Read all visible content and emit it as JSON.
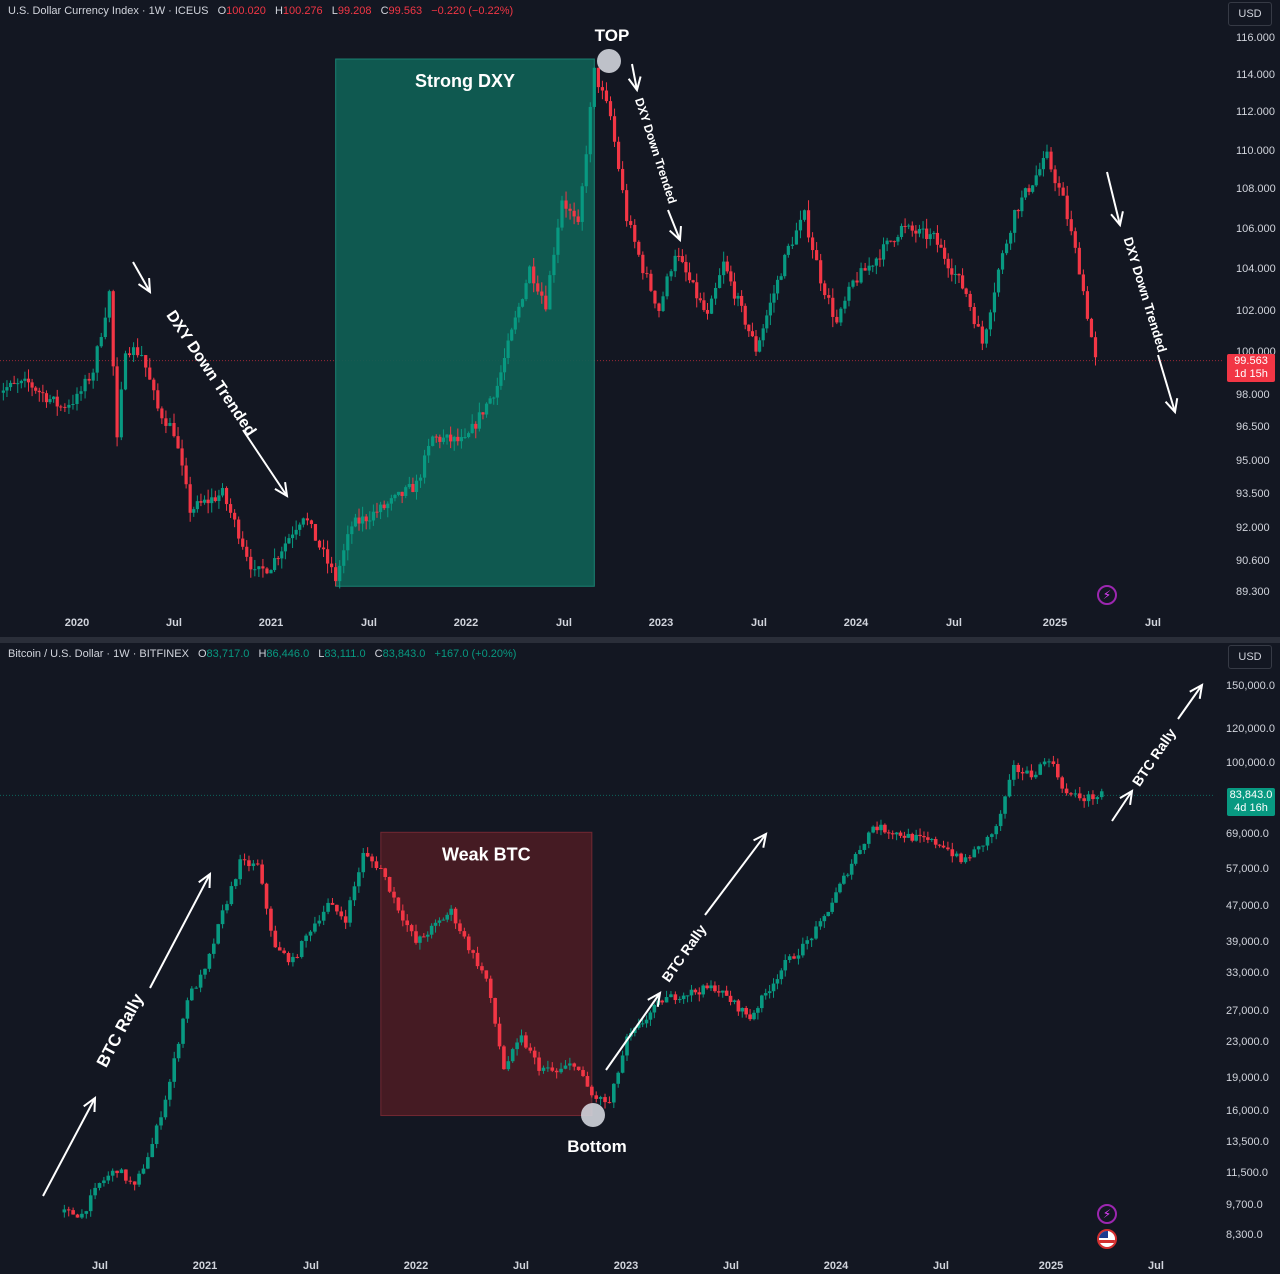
{
  "chart_data": [
    {
      "type": "candlestick",
      "symbol_line": "U.S. Dollar Currency Index · 1W · ICEUS",
      "ohlc": {
        "o_label": "O",
        "o": "100.020",
        "h_label": "H",
        "h": "100.276",
        "l_label": "L",
        "l": "99.208",
        "c_label": "C",
        "c": "99.563",
        "change": "−0.220 (−0.22%)"
      },
      "currency": "USD",
      "last_price": "99.563",
      "countdown": "1d 15h",
      "y_ticks": [
        "116.000",
        "114.000",
        "112.000",
        "110.000",
        "108.000",
        "106.000",
        "104.000",
        "102.000",
        "100.000",
        "98.000",
        "96.500",
        "95.000",
        "93.500",
        "92.000",
        "90.600",
        "89.300"
      ],
      "x_ticks": [
        "2020",
        "Jul",
        "2021",
        "Jul",
        "2022",
        "Jul",
        "2023",
        "Jul",
        "2024",
        "Jul",
        "2025",
        "Jul"
      ],
      "ylim": [
        88.8,
        116.5
      ],
      "y_scale": "log",
      "x_range": [
        "2019-08",
        "2025-08"
      ],
      "highlight_zone": {
        "label": "Strong DXY",
        "from": "2021-05",
        "to": "2022-09",
        "y_from": 89.5,
        "y_to": 114.8,
        "color": "#0f5f54"
      },
      "annotations": [
        "TOP",
        "DXY Down Trended",
        "DXY Down Trended",
        "DXY Down Trended"
      ],
      "key_points": [
        {
          "x": "2019-08",
          "y": 98.2
        },
        {
          "x": "2019-10",
          "y": 98.5
        },
        {
          "x": "2019-12",
          "y": 97.4
        },
        {
          "x": "2020-01",
          "y": 97.8
        },
        {
          "x": "2020-02",
          "y": 99.1
        },
        {
          "x": "2020-03",
          "y": 102.8
        },
        {
          "x": "2020-03",
          "y": 95.8
        },
        {
          "x": "2020-04",
          "y": 100.2
        },
        {
          "x": "2020-05",
          "y": 99.9
        },
        {
          "x": "2020-06",
          "y": 97.3
        },
        {
          "x": "2020-07",
          "y": 96.3
        },
        {
          "x": "2020-08",
          "y": 92.8
        },
        {
          "x": "2020-10",
          "y": 93.5
        },
        {
          "x": "2020-11",
          "y": 91.8
        },
        {
          "x": "2020-12",
          "y": 90.0
        },
        {
          "x": "2021-01",
          "y": 90.4
        },
        {
          "x": "2021-03",
          "y": 92.6
        },
        {
          "x": "2021-04",
          "y": 91.2
        },
        {
          "x": "2021-05",
          "y": 89.8
        },
        {
          "x": "2021-06",
          "y": 92.1
        },
        {
          "x": "2021-08",
          "y": 92.9
        },
        {
          "x": "2021-10",
          "y": 93.9
        },
        {
          "x": "2021-11",
          "y": 96.0
        },
        {
          "x": "2022-01",
          "y": 95.8
        },
        {
          "x": "2022-03",
          "y": 98.4
        },
        {
          "x": "2022-05",
          "y": 104.0
        },
        {
          "x": "2022-06",
          "y": 102.3
        },
        {
          "x": "2022-07",
          "y": 107.5
        },
        {
          "x": "2022-08",
          "y": 106.0
        },
        {
          "x": "2022-09",
          "y": 114.1
        },
        {
          "x": "2022-10",
          "y": 111.7
        },
        {
          "x": "2022-11",
          "y": 106.5
        },
        {
          "x": "2022-12",
          "y": 104.0
        },
        {
          "x": "2023-01",
          "y": 102.0
        },
        {
          "x": "2023-02",
          "y": 104.8
        },
        {
          "x": "2023-04",
          "y": 101.6
        },
        {
          "x": "2023-05",
          "y": 104.2
        },
        {
          "x": "2023-07",
          "y": 100.1
        },
        {
          "x": "2023-09",
          "y": 105.0
        },
        {
          "x": "2023-10",
          "y": 106.6
        },
        {
          "x": "2023-11",
          "y": 103.5
        },
        {
          "x": "2023-12",
          "y": 101.3
        },
        {
          "x": "2024-01",
          "y": 103.3
        },
        {
          "x": "2024-02",
          "y": 104.1
        },
        {
          "x": "2024-04",
          "y": 106.0
        },
        {
          "x": "2024-06",
          "y": 105.5
        },
        {
          "x": "2024-08",
          "y": 102.8
        },
        {
          "x": "2024-09",
          "y": 100.4
        },
        {
          "x": "2024-10",
          "y": 103.9
        },
        {
          "x": "2024-11",
          "y": 106.8
        },
        {
          "x": "2025-01",
          "y": 109.6
        },
        {
          "x": "2025-02",
          "y": 107.4
        },
        {
          "x": "2025-03",
          "y": 104.0
        },
        {
          "x": "2025-04",
          "y": 99.56
        }
      ]
    },
    {
      "type": "candlestick",
      "symbol_line": "Bitcoin / U.S. Dollar · 1W · BITFINEX",
      "ohlc": {
        "o_label": "O",
        "o": "83,717.0",
        "h_label": "H",
        "h": "86,446.0",
        "l_label": "L",
        "l": "83,111.0",
        "c_label": "C",
        "c": "83,843.0",
        "change": "+167.0 (+0.20%)"
      },
      "currency": "USD",
      "last_price": "83,843.0",
      "countdown": "4d 16h",
      "y_ticks": [
        "150,000.0",
        "120,000.0",
        "100,000.0",
        "69,000.0",
        "57,000.0",
        "47,000.0",
        "39,000.0",
        "33,000.0",
        "27,000.0",
        "23,000.0",
        "19,000.0",
        "16,000.0",
        "13,500.0",
        "11,500.0",
        "9,700.0",
        "8,300.0"
      ],
      "x_ticks": [
        "Jul",
        "2021",
        "Jul",
        "2022",
        "Jul",
        "2023",
        "Jul",
        "2024",
        "Jul",
        "2025",
        "Jul"
      ],
      "ylim": [
        7700,
        160000
      ],
      "y_scale": "log",
      "x_range": [
        "2020-05",
        "2025-08"
      ],
      "highlight_zone": {
        "label": "Weak BTC",
        "from": "2021-11",
        "to": "2022-11",
        "y_from": 15500,
        "y_to": 69000,
        "color": "#4a1c24"
      },
      "annotations": [
        "BTC Rally",
        "BTC Rally",
        "BTC Rally",
        "Bottom"
      ],
      "key_points": [
        {
          "x": "2020-05",
          "y": 9300
        },
        {
          "x": "2020-06",
          "y": 9200
        },
        {
          "x": "2020-07",
          "y": 10800
        },
        {
          "x": "2020-08",
          "y": 11700
        },
        {
          "x": "2020-09",
          "y": 10600
        },
        {
          "x": "2020-10",
          "y": 13300
        },
        {
          "x": "2020-11",
          "y": 18500
        },
        {
          "x": "2020-12",
          "y": 28800
        },
        {
          "x": "2021-01",
          "y": 33100
        },
        {
          "x": "2021-02",
          "y": 45000
        },
        {
          "x": "2021-03",
          "y": 58700
        },
        {
          "x": "2021-04",
          "y": 57700
        },
        {
          "x": "2021-05",
          "y": 37300
        },
        {
          "x": "2021-06",
          "y": 35000
        },
        {
          "x": "2021-07",
          "y": 41500
        },
        {
          "x": "2021-08",
          "y": 47100
        },
        {
          "x": "2021-09",
          "y": 43800
        },
        {
          "x": "2021-10",
          "y": 61300
        },
        {
          "x": "2021-11",
          "y": 57000
        },
        {
          "x": "2021-12",
          "y": 46300
        },
        {
          "x": "2022-01",
          "y": 38500
        },
        {
          "x": "2022-03",
          "y": 45500
        },
        {
          "x": "2022-04",
          "y": 37700
        },
        {
          "x": "2022-05",
          "y": 31800
        },
        {
          "x": "2022-06",
          "y": 19900
        },
        {
          "x": "2022-07",
          "y": 23300
        },
        {
          "x": "2022-08",
          "y": 20000
        },
        {
          "x": "2022-09",
          "y": 19400
        },
        {
          "x": "2022-10",
          "y": 20500
        },
        {
          "x": "2022-11",
          "y": 17200
        },
        {
          "x": "2022-12",
          "y": 16500
        },
        {
          "x": "2023-01",
          "y": 23100
        },
        {
          "x": "2023-03",
          "y": 28500
        },
        {
          "x": "2023-04",
          "y": 29300
        },
        {
          "x": "2023-06",
          "y": 30500
        },
        {
          "x": "2023-08",
          "y": 26000
        },
        {
          "x": "2023-10",
          "y": 34500
        },
        {
          "x": "2023-11",
          "y": 37700
        },
        {
          "x": "2023-12",
          "y": 42300
        },
        {
          "x": "2024-02",
          "y": 61200
        },
        {
          "x": "2024-03",
          "y": 71300
        },
        {
          "x": "2024-05",
          "y": 67500
        },
        {
          "x": "2024-07",
          "y": 64600
        },
        {
          "x": "2024-08",
          "y": 59000
        },
        {
          "x": "2024-09",
          "y": 63300
        },
        {
          "x": "2024-10",
          "y": 70300
        },
        {
          "x": "2024-11",
          "y": 96400
        },
        {
          "x": "2024-12",
          "y": 93400
        },
        {
          "x": "2025-01",
          "y": 102400
        },
        {
          "x": "2025-02",
          "y": 84300
        },
        {
          "x": "2025-03",
          "y": 82500
        },
        {
          "x": "2025-04",
          "y": 83843
        }
      ]
    }
  ]
}
